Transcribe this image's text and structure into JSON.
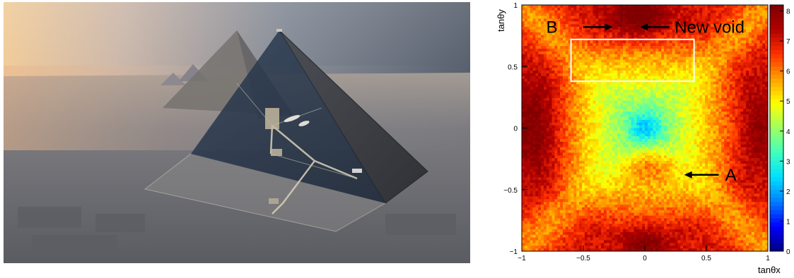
{
  "photo": {
    "subject": "cutaway rendering of the Great Pyramid of Giza at dusk showing internal chambers and corridors",
    "colors": {
      "sky_warm": "#e7b98c",
      "sky_cool": "#596372",
      "ground": "#6f7179",
      "stone_dark": "#3e4046"
    }
  },
  "chart_data": {
    "type": "heatmap",
    "title": "",
    "xlabel": "tanθx",
    "ylabel": "tanθy",
    "xlim": [
      -1,
      1
    ],
    "ylim": [
      -1,
      1
    ],
    "xticks": [
      {
        "value": -1,
        "label": "−1"
      },
      {
        "value": -0.5,
        "label": "−0.5"
      },
      {
        "value": 0,
        "label": "0"
      },
      {
        "value": 0.5,
        "label": "0.5"
      },
      {
        "value": 1,
        "label": "1"
      }
    ],
    "yticks": [
      {
        "value": -1,
        "label": "−1"
      },
      {
        "value": -0.5,
        "label": "−0.5"
      },
      {
        "value": 0,
        "label": "0"
      },
      {
        "value": 0.5,
        "label": "0.5"
      },
      {
        "value": 1,
        "label": "1"
      }
    ],
    "colorbar": {
      "range": [
        0,
        8.2
      ],
      "ticks": [
        {
          "value": 0,
          "label": "0"
        },
        {
          "value": 1,
          "label": "1"
        },
        {
          "value": 2,
          "label": "2"
        },
        {
          "value": 3,
          "label": "3"
        },
        {
          "value": 4,
          "label": "4"
        },
        {
          "value": 5,
          "label": "5"
        },
        {
          "value": 6,
          "label": "6"
        },
        {
          "value": 7,
          "label": "7"
        },
        {
          "value": 8,
          "label": "8"
        }
      ],
      "colormap": [
        "#00007f",
        "#0000ff",
        "#007fff",
        "#00e0ff",
        "#40ffbf",
        "#a0ff60",
        "#ffff00",
        "#ff9f00",
        "#ff3000",
        "#b00000",
        "#800000"
      ]
    },
    "grid": false,
    "field_model": {
      "description": "muon excess ratio; lowest near origin, X-shaped high bands along corners",
      "min_value": 3.4,
      "corner_value": 7.0,
      "center_x": 0.0,
      "center_y": 0.0
    },
    "highlight_region": {
      "x": [
        -0.6,
        0.4
      ],
      "y": [
        0.38,
        0.72
      ],
      "color": "#ffffff"
    },
    "annotations": [
      {
        "label": "B",
        "x": -0.71,
        "y": 0.82,
        "arrow_tail_x": -0.5,
        "arrow_head_x": -0.26,
        "arrow_y": 0.82
      },
      {
        "label": "New void",
        "x": 0.22,
        "y": 0.82,
        "arrow_tail_x": 0.2,
        "arrow_head_x": -0.04,
        "arrow_y": 0.82
      },
      {
        "label": "A",
        "x": 0.63,
        "y": -0.38,
        "arrow_tail_x": 0.6,
        "arrow_head_x": 0.32,
        "arrow_y": -0.38
      }
    ]
  }
}
